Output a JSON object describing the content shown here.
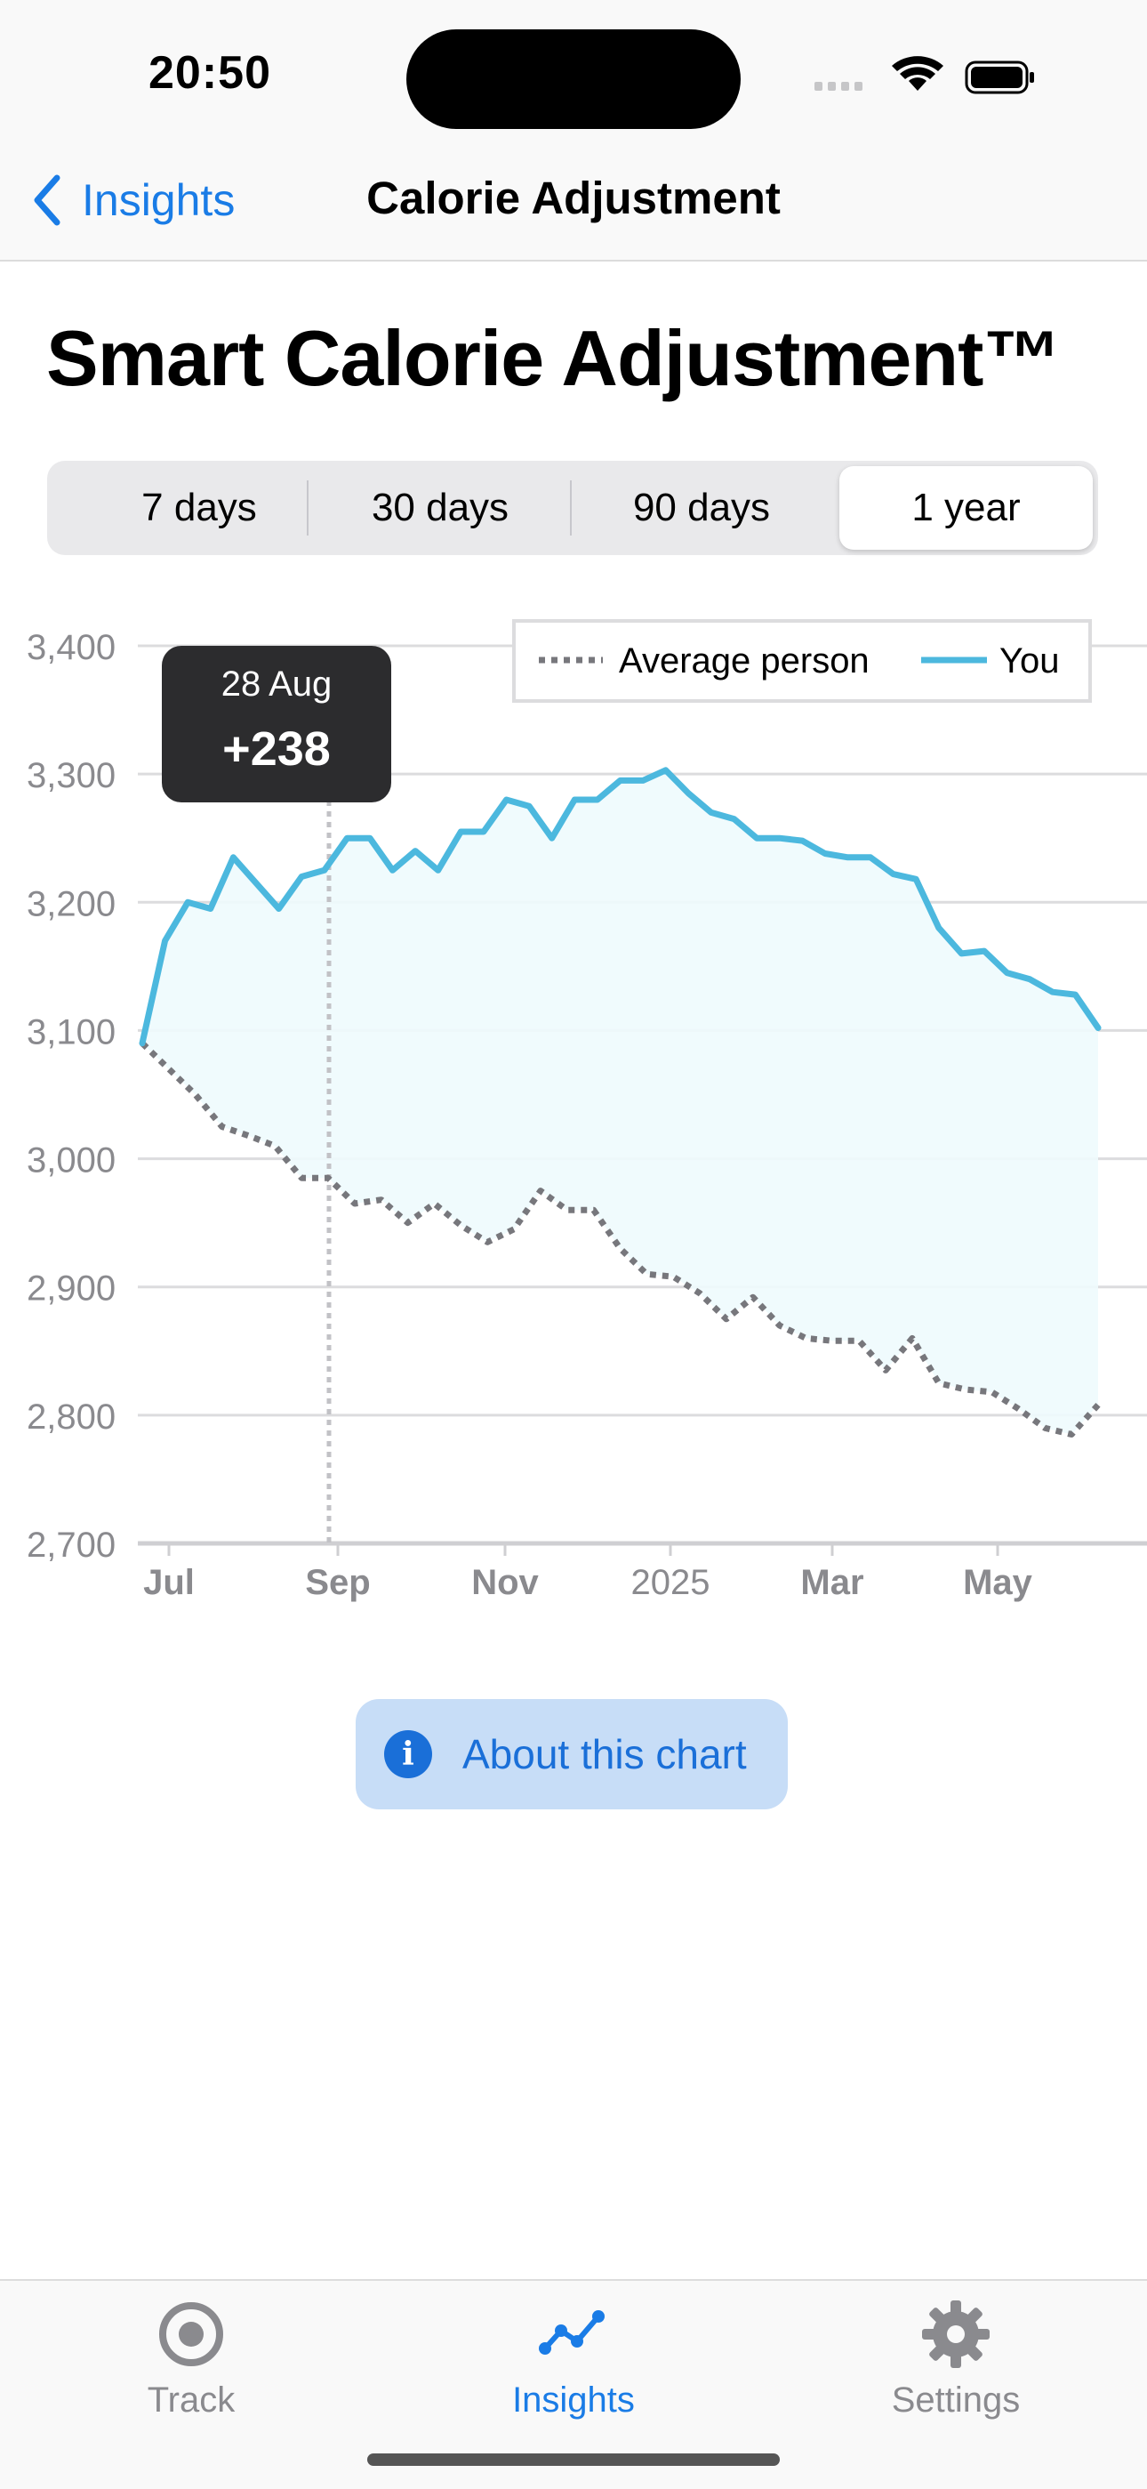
{
  "status_bar": {
    "time": "20:50"
  },
  "nav": {
    "back_label": "Insights",
    "title": "Calorie Adjustment"
  },
  "page": {
    "title": "Smart Calorie Adjustment™"
  },
  "range_tabs": [
    {
      "label": "7 days",
      "selected": false
    },
    {
      "label": "30 days",
      "selected": false
    },
    {
      "label": "90 days",
      "selected": false
    },
    {
      "label": "1 year",
      "selected": true
    }
  ],
  "chart_data": {
    "type": "line",
    "legend": {
      "position": "top-right",
      "items": [
        "Average person",
        "You"
      ]
    },
    "y_ticks": [
      "3,400",
      "3,300",
      "3,200",
      "3,100",
      "3,000",
      "2,900",
      "2,800",
      "2,700"
    ],
    "ylim": [
      2700,
      3400
    ],
    "x_ticks": [
      "Jul",
      "Sep",
      "Nov",
      "2025",
      "Mar",
      "May"
    ],
    "grid": true,
    "series": [
      {
        "name": "You",
        "color": "#4cb8de",
        "style": "solid",
        "values": [
          3090,
          3170,
          3200,
          3195,
          3235,
          3215,
          3195,
          3220,
          3225,
          3250,
          3250,
          3225,
          3240,
          3225,
          3255,
          3255,
          3280,
          3275,
          3250,
          3280,
          3280,
          3295,
          3295,
          3303,
          3285,
          3270,
          3265,
          3250,
          3250,
          3248,
          3238,
          3235,
          3235,
          3222,
          3218,
          3180,
          3160,
          3162,
          3145,
          3140,
          3130,
          3128,
          3102
        ]
      },
      {
        "name": "Average person",
        "color": "#77777c",
        "style": "dotted",
        "values": [
          3090,
          3070,
          3050,
          3025,
          3018,
          3010,
          2985,
          2985,
          2965,
          2968,
          2950,
          2965,
          2948,
          2935,
          2945,
          2975,
          2960,
          2960,
          2930,
          2910,
          2908,
          2895,
          2875,
          2892,
          2870,
          2860,
          2858,
          2858,
          2835,
          2860,
          2825,
          2820,
          2818,
          2805,
          2790,
          2785,
          2808
        ]
      }
    ],
    "tooltip": {
      "date": "28 Aug",
      "value": "+238"
    }
  },
  "about_button": {
    "label": "About this chart"
  },
  "tab_bar": [
    {
      "label": "Track",
      "icon": "target-icon",
      "active": false
    },
    {
      "label": "Insights",
      "icon": "chart-line-icon",
      "active": true
    },
    {
      "label": "Settings",
      "icon": "gear-icon",
      "active": false
    }
  ]
}
